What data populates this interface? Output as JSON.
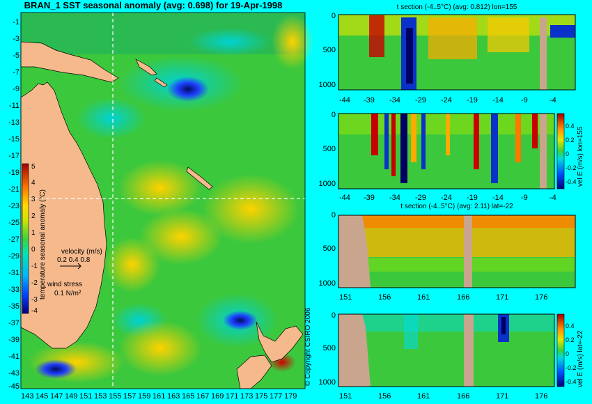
{
  "main_title": "BRAN_1 SST seasonal anomaly (avg: 0.698) for 19-Apr-1998",
  "copyright": "© Copyright CSIRO 2006",
  "colors": {
    "background": "#00ffff",
    "land": "#f5b98c",
    "section_land": "#c8a58c"
  },
  "chart_data": [
    {
      "type": "heatmap",
      "title": "BRAN_1 SST seasonal anomaly (avg: 0.698) for 19-Apr-1998",
      "ylabel_ticks": [
        "-1",
        "-3",
        "-5",
        "-7",
        "-9",
        "-11",
        "-13",
        "-15",
        "-17",
        "-19",
        "-21",
        "-23",
        "-25",
        "-27",
        "-29",
        "-31",
        "-33",
        "-35",
        "-37",
        "-39",
        "-41",
        "-43",
        "-45"
      ],
      "xlabel_ticks": [
        "143",
        "145",
        "147",
        "149",
        "151",
        "153",
        "155",
        "157",
        "159",
        "161",
        "163",
        "165",
        "167",
        "169",
        "171",
        "173",
        "175",
        "177",
        "179"
      ],
      "colorbar": {
        "label": "temperature seasonal anomaly (°C)",
        "ticks": [
          "5",
          "4",
          "3",
          "2",
          "1",
          "0",
          "-1",
          "-2",
          "-3",
          "-4"
        ],
        "range": [
          -4,
          5
        ]
      },
      "legend": {
        "velocity_label": "velocity (m/s)",
        "velocity_scale": "0.2 0.4 0.8",
        "wind_label": "wind stress",
        "wind_scale": "0.1 N/m²"
      },
      "section_lines": {
        "lon": 155,
        "lat": -22
      }
    },
    {
      "type": "heatmap",
      "title": "t section (-4..5°C) (avg: 0.812) lon=155",
      "yticks": [
        "0",
        "500",
        "1000"
      ],
      "xticks": [
        "-44",
        "-39",
        "-34",
        "-29",
        "-24",
        "-19",
        "-14",
        "-9",
        "-4"
      ]
    },
    {
      "type": "heatmap",
      "title": "",
      "yticks": [
        "0",
        "500",
        "1000"
      ],
      "xticks": [
        "-44",
        "-39",
        "-34",
        "-29",
        "-24",
        "-19",
        "-14",
        "-9",
        "-4"
      ],
      "colorbar": {
        "label": "vel E (m/s) lon=155",
        "ticks": [
          "0.4",
          "0.2",
          "0",
          "-0.2",
          "-0.4"
        ]
      }
    },
    {
      "type": "heatmap",
      "title": "t section (-4..5°C) (avg: 2.11) lat=-22",
      "yticks": [
        "0",
        "500",
        "1000"
      ],
      "xticks": [
        "151",
        "156",
        "161",
        "166",
        "171",
        "176"
      ]
    },
    {
      "type": "heatmap",
      "title": "",
      "yticks": [
        "0",
        "500",
        "1000"
      ],
      "xticks": [
        "151",
        "156",
        "161",
        "166",
        "171",
        "176"
      ],
      "colorbar": {
        "label": "vel E (m/s) lat=-22",
        "ticks": [
          "0.4",
          "0.2",
          "0",
          "-0.2",
          "-0.4"
        ]
      }
    }
  ]
}
